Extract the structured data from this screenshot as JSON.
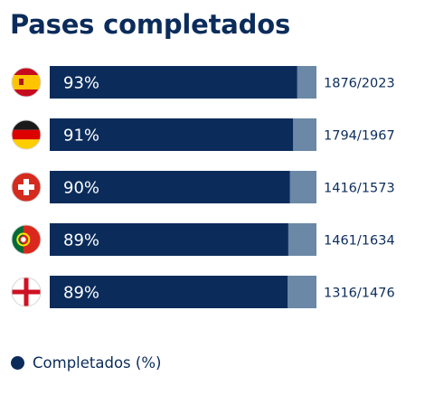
{
  "chart_data": {
    "type": "bar",
    "orientation": "horizontal",
    "title": "Pases completados",
    "xlim": [
      0,
      100
    ],
    "categories": [
      "España",
      "Alemania",
      "Suiza",
      "Portugal",
      "Inglaterra"
    ],
    "flag_icons": [
      "spain-flag-icon",
      "germany-flag-icon",
      "switzerland-flag-icon",
      "portugal-flag-icon",
      "england-flag-icon"
    ],
    "series": [
      {
        "name": "Completados (%)",
        "values": [
          92.74,
          91.2,
          90.02,
          89.41,
          89.16
        ],
        "labels": [
          "93%",
          "91%",
          "90%",
          "89%",
          "89%"
        ]
      }
    ],
    "ratio_labels": [
      "1876/2023",
      "1794/1967",
      "1416/1573",
      "1461/1634",
      "1316/1476"
    ],
    "colors": {
      "completed": "#0b2c5b",
      "remainder": "#6b88a6",
      "text": "#0b2c5b"
    },
    "legend": {
      "position": "bottom-left",
      "label": "Completados (%)"
    }
  }
}
